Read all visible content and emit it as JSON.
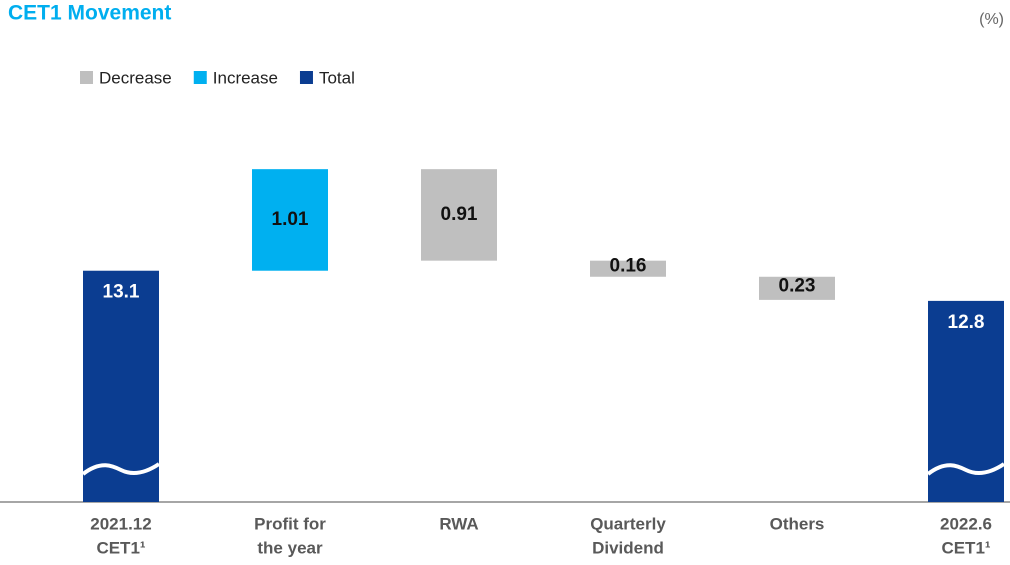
{
  "chart_data": {
    "type": "waterfall",
    "title": "CET1 Movement",
    "unit_label": "(%)",
    "categories": [
      [
        "2021.12",
        "CET1¹"
      ],
      [
        "Profit for",
        "the year"
      ],
      [
        "RWA"
      ],
      [
        "Quarterly",
        "Dividend"
      ],
      [
        "Others"
      ],
      [
        "2022.6",
        "CET1¹"
      ]
    ],
    "values": [
      13.1,
      1.01,
      0.91,
      0.16,
      0.23,
      12.8
    ],
    "series": [
      {
        "name": "Decrease",
        "color": "#bfbfbf"
      },
      {
        "name": "Increase",
        "color": "#00b0f0"
      },
      {
        "name": "Total",
        "color": "#0b3d91"
      }
    ],
    "bar_series": [
      2,
      1,
      0,
      0,
      0,
      2
    ],
    "ylim": [
      10.8,
      14.4
    ]
  }
}
